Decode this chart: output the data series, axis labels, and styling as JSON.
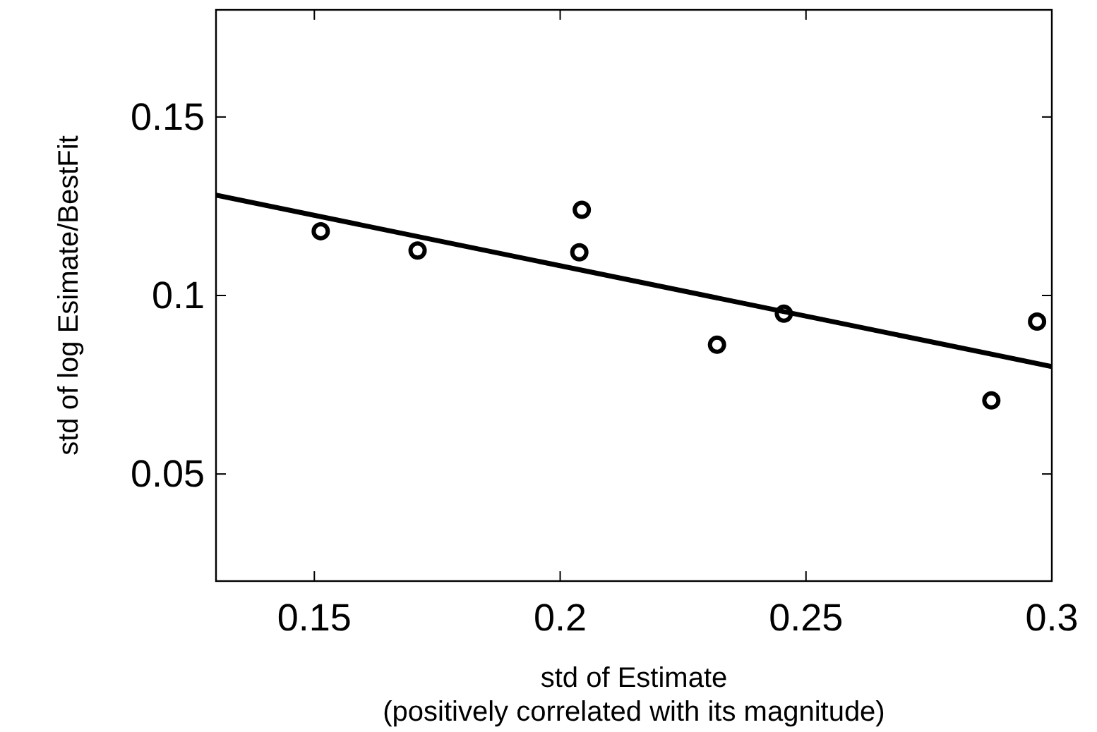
{
  "chart_data": {
    "type": "scatter",
    "xlabel": "std of Estimate\n(positively correlated with its magnitude)",
    "ylabel": "std of log Esimate/BestFit",
    "xlim": [
      0.13,
      0.3
    ],
    "ylim": [
      0.02,
      0.18
    ],
    "xticks": [
      0.15,
      0.2,
      0.25,
      0.3
    ],
    "yticks": [
      0.05,
      0.1,
      0.15
    ],
    "grid": false,
    "series": [
      {
        "color": "#000000",
        "marker": "circle",
        "x": [
          0.1513,
          0.171,
          0.2044,
          0.2039,
          0.2319,
          0.2455,
          0.2877,
          0.297
        ],
        "values": [
          0.118,
          0.1126,
          0.124,
          0.1121,
          0.0862,
          0.0949,
          0.0706,
          0.0927
        ]
      },
      {
        "type": "line",
        "color": "#000000",
        "marker": "none",
        "line_style": "solid",
        "x": [
          0.13,
          0.3
        ],
        "values": [
          0.1281,
          0.0801
        ]
      }
    ]
  }
}
